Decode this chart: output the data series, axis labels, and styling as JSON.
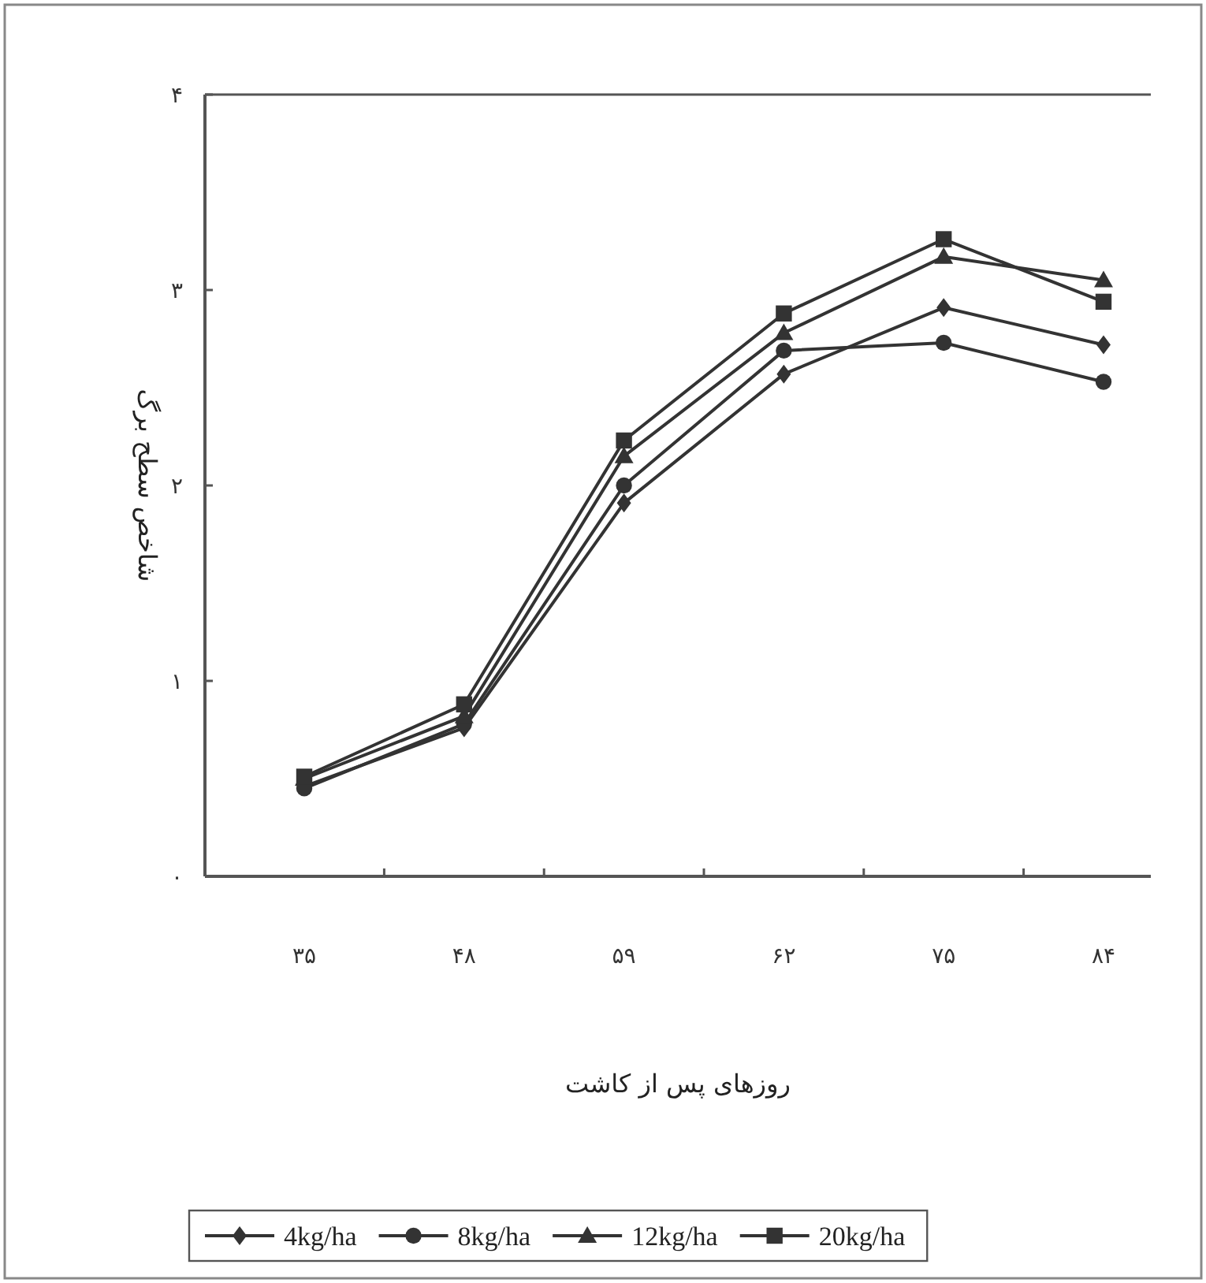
{
  "chart_data": {
    "type": "line",
    "xlabel": "روزهای پس از کاشت",
    "ylabel": "شاخص سطح برگ",
    "categories": [
      "۳۵",
      "۴۸",
      "۵۹",
      "۶۲",
      "۷۵",
      "۸۴"
    ],
    "ylim": [
      0,
      4
    ],
    "yticks": [
      {
        "value": 0,
        "label": "۰"
      },
      {
        "value": 1,
        "label": "۱"
      },
      {
        "value": 2,
        "label": "۲"
      },
      {
        "value": 3,
        "label": "۳"
      },
      {
        "value": 4,
        "label": "۴"
      }
    ],
    "series": [
      {
        "name": "4kg/ha",
        "color": "#333333",
        "marker": "diamond",
        "values": [
          0.46,
          0.76,
          1.91,
          2.57,
          2.91,
          2.72
        ]
      },
      {
        "name": "8kg/ha",
        "color": "#333333",
        "marker": "circle",
        "values": [
          0.45,
          0.78,
          2.0,
          2.69,
          2.73,
          2.53
        ]
      },
      {
        "name": "12kg/ha",
        "color": "#333333",
        "marker": "triangle",
        "values": [
          0.5,
          0.82,
          2.15,
          2.78,
          3.17,
          3.05
        ]
      },
      {
        "name": "20kg/ha",
        "color": "#333333",
        "marker": "square",
        "values": [
          0.51,
          0.88,
          2.23,
          2.88,
          3.26,
          2.94
        ]
      }
    ],
    "legend": "bottom",
    "grid": false,
    "line_style": "solid"
  }
}
